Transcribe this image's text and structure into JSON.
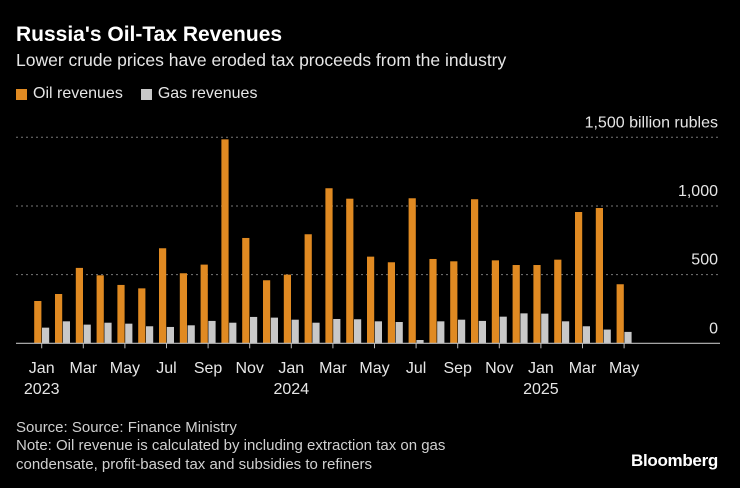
{
  "title": "Russia's Oil-Tax Revenues",
  "subtitle": "Lower crude prices have eroded tax proceeds from the industry",
  "source": "Source: Source: Finance Ministry",
  "note_line1": "Note: Oil revenue is calculated by including extraction tax on gas",
  "note_line2": "condensate, profit-based tax and subsidies to refiners",
  "brand": "Bloomberg",
  "chart_data": {
    "type": "bar",
    "unit_label": "billion rubles",
    "ylim": [
      0,
      1500
    ],
    "yticks": [
      {
        "value": 0,
        "label": "0"
      },
      {
        "value": 500,
        "label": "500"
      },
      {
        "value": 1000,
        "label": "1,000"
      },
      {
        "value": 1500,
        "label": "1,500 billion rubles"
      }
    ],
    "grid": true,
    "legend_position": "top-left",
    "categories": [
      "Jan 2023",
      "Feb 2023",
      "Mar 2023",
      "Apr 2023",
      "May 2023",
      "Jun 2023",
      "Jul 2023",
      "Aug 2023",
      "Sep 2023",
      "Oct 2023",
      "Nov 2023",
      "Dec 2023",
      "Jan 2024",
      "Feb 2024",
      "Mar 2024",
      "Apr 2024",
      "May 2024",
      "Jun 2024",
      "Jul 2024",
      "Aug 2024",
      "Sep 2024",
      "Oct 2024",
      "Nov 2024",
      "Dec 2024",
      "Jan 2025",
      "Feb 2025",
      "Mar 2025",
      "Apr 2025",
      "May 2025"
    ],
    "xtick_labels": [
      {
        "index": 0,
        "label": "Jan",
        "year": "2023"
      },
      {
        "index": 2,
        "label": "Mar"
      },
      {
        "index": 4,
        "label": "May"
      },
      {
        "index": 6,
        "label": "Jul"
      },
      {
        "index": 8,
        "label": "Sep"
      },
      {
        "index": 10,
        "label": "Nov"
      },
      {
        "index": 12,
        "label": "Jan",
        "year": "2024"
      },
      {
        "index": 14,
        "label": "Mar"
      },
      {
        "index": 16,
        "label": "May"
      },
      {
        "index": 18,
        "label": "Jul"
      },
      {
        "index": 20,
        "label": "Sep"
      },
      {
        "index": 22,
        "label": "Nov"
      },
      {
        "index": 24,
        "label": "Jan",
        "year": "2025"
      },
      {
        "index": 26,
        "label": "Mar"
      },
      {
        "index": 28,
        "label": "May"
      }
    ],
    "series": [
      {
        "name": "Oil revenues",
        "color": "#e08a22",
        "values": [
          308,
          359,
          549,
          495,
          425,
          400,
          692,
          510,
          573,
          1485,
          767,
          459,
          500,
          794,
          1129,
          1053,
          631,
          590,
          1056,
          614,
          597,
          1049,
          604,
          570,
          570,
          609,
          956,
          985,
          430
        ]
      },
      {
        "name": "Gas revenues",
        "color": "#c8c8c8",
        "values": [
          114,
          160,
          136,
          150,
          143,
          124,
          119,
          131,
          163,
          150,
          192,
          187,
          172,
          150,
          177,
          175,
          160,
          155,
          24,
          160,
          172,
          163,
          194,
          218,
          216,
          160,
          124,
          100,
          83
        ]
      }
    ]
  }
}
